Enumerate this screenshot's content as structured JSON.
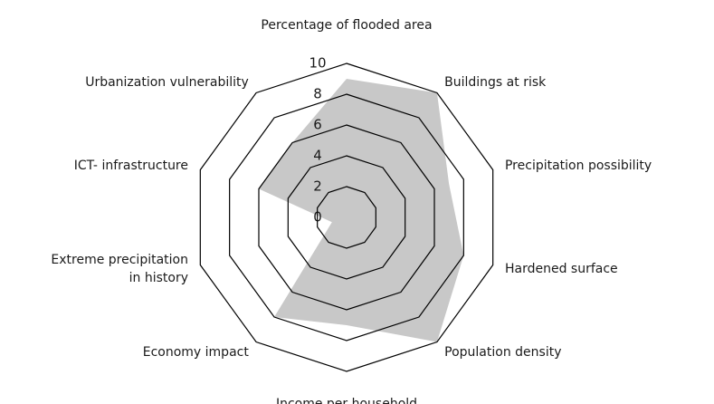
{
  "chart_data": {
    "type": "radar",
    "categories": [
      "Percentage of flooded area",
      "Buildings at risk",
      "Precipitation possibility",
      "Hardened surface",
      "Population density",
      "Income per household",
      "Economy impact",
      "Extreme precipitation\nin history",
      "ICT- infrastructure",
      "Urbanization vulnerability"
    ],
    "values": [
      9,
      10,
      7,
      8,
      10,
      7,
      8,
      1,
      6,
      6
    ],
    "color": "#c8c8c8",
    "rlim": [
      0,
      10
    ],
    "rticks": [
      0,
      2,
      4,
      6,
      8,
      10
    ]
  }
}
